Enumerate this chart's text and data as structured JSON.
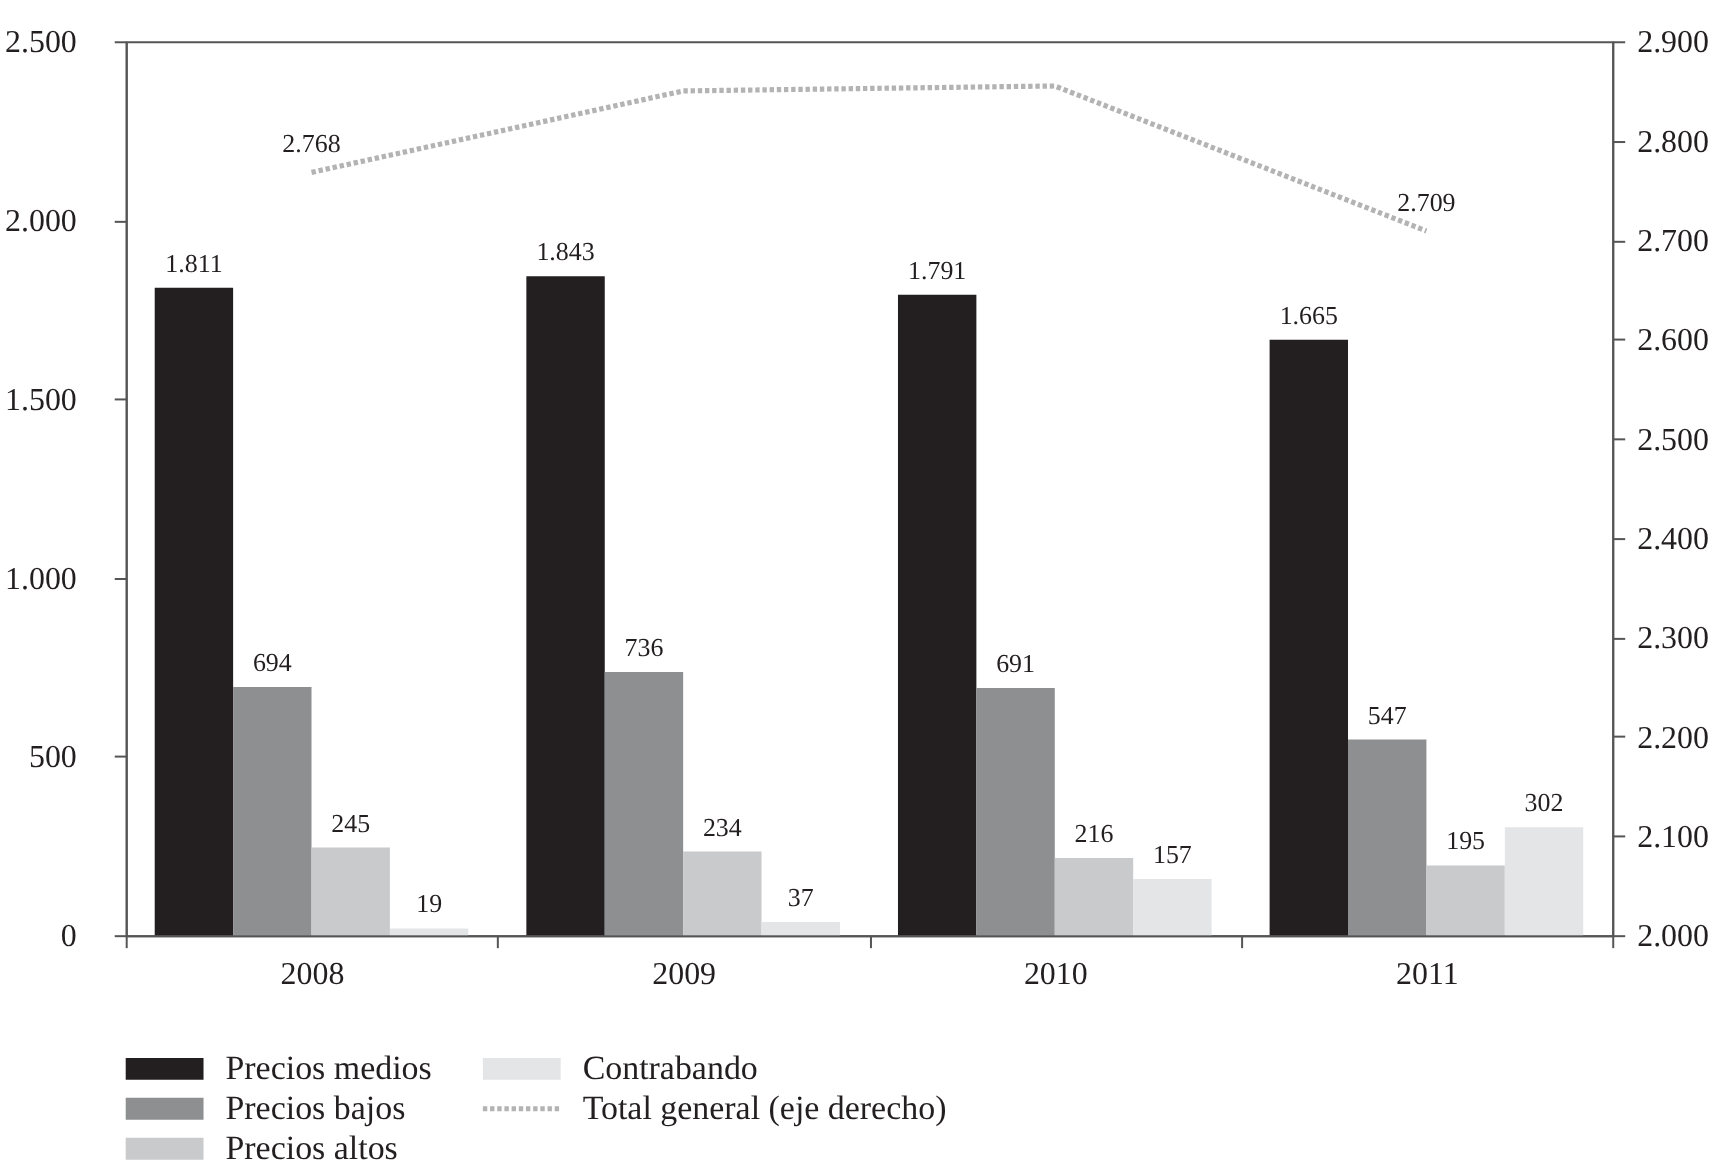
{
  "chart_data": {
    "type": "bar",
    "categories": [
      "2008",
      "2009",
      "2010",
      "2011"
    ],
    "series": [
      {
        "name": "Precios medios",
        "color": "#231f20",
        "values": [
          1811,
          1843,
          1791,
          1665
        ],
        "value_labels": [
          "1.811",
          "1.843",
          "1.791",
          "1.665"
        ]
      },
      {
        "name": "Precios bajos",
        "color": "#8e8f91",
        "values": [
          694,
          736,
          691,
          547
        ],
        "value_labels": [
          "694",
          "736",
          "691",
          "547"
        ]
      },
      {
        "name": "Precios altos",
        "color": "#c9cacc",
        "values": [
          245,
          234,
          216,
          195
        ],
        "value_labels": [
          "245",
          "234",
          "216",
          "195"
        ]
      },
      {
        "name": "Contrabando",
        "color": "#e4e5e6",
        "values": [
          19,
          37,
          157,
          302
        ],
        "value_labels": [
          "19",
          "37",
          "157",
          "302"
        ]
      },
      {
        "name": "Total general (eje derecho)",
        "type": "line",
        "axis": "y2",
        "color": "#b3b3b3",
        "line_style": "dotted",
        "values": [
          2768,
          2850,
          2855,
          2709
        ],
        "value_labels": [
          "2.768",
          null,
          null,
          "2.709"
        ]
      }
    ],
    "ylim": [
      0,
      2500
    ],
    "yticks": [
      0,
      500,
      {
        "value": 1000,
        "label": "1.000"
      },
      {
        "value": 1500,
        "label": "1.500"
      },
      {
        "value": 2000,
        "label": "2.000"
      },
      {
        "value": 2500,
        "label": "2.500"
      }
    ],
    "y2lim": [
      2000,
      2900
    ],
    "y2ticks": [
      {
        "value": 2000,
        "label": "2.000"
      },
      {
        "value": 2100,
        "label": "2.100"
      },
      {
        "value": 2200,
        "label": "2.200"
      },
      {
        "value": 2300,
        "label": "2.300"
      },
      {
        "value": 2400,
        "label": "2.400"
      },
      {
        "value": 2500,
        "label": "2.500"
      },
      {
        "value": 2600,
        "label": "2.600"
      },
      {
        "value": 2700,
        "label": "2.700"
      },
      {
        "value": 2800,
        "label": "2.800"
      },
      {
        "value": 2900,
        "label": "2.900"
      }
    ],
    "grid": false,
    "legend": "bottom left"
  }
}
